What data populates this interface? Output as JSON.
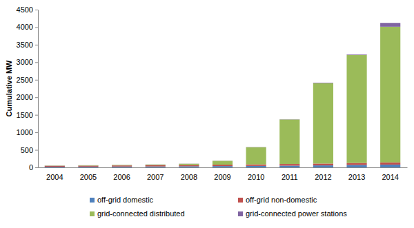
{
  "chart_data": {
    "type": "bar",
    "stacked": true,
    "y_label": "Cumulative MW",
    "categories": [
      "2004",
      "2005",
      "2006",
      "2007",
      "2008",
      "2009",
      "2010",
      "2011",
      "2012",
      "2013",
      "2014"
    ],
    "series": [
      {
        "name": "off-grid domestic",
        "color": "#4f81bd",
        "values": [
          20,
          22,
          25,
          28,
          32,
          37,
          42,
          50,
          57,
          70,
          80
        ]
      },
      {
        "name": "off-grid non-domestic",
        "color": "#c0504d",
        "values": [
          25,
          28,
          30,
          33,
          36,
          40,
          43,
          47,
          52,
          57,
          62
        ]
      },
      {
        "name": "grid-connected distributed",
        "color": "#9bbb59",
        "values": [
          7,
          10,
          14,
          19,
          35,
          110,
          490,
          1270,
          2290,
          3080,
          3870
        ]
      },
      {
        "name": "grid-connected power stations",
        "color": "#8064a2",
        "values": [
          2,
          2,
          2,
          3,
          3,
          3,
          5,
          5,
          15,
          15,
          110
        ]
      }
    ],
    "ylim": [
      0,
      4500
    ],
    "yticks": [
      0,
      500,
      1000,
      1500,
      2000,
      2500,
      3000,
      3500,
      4000,
      4500
    ],
    "grid": false,
    "legend": "bottom"
  }
}
